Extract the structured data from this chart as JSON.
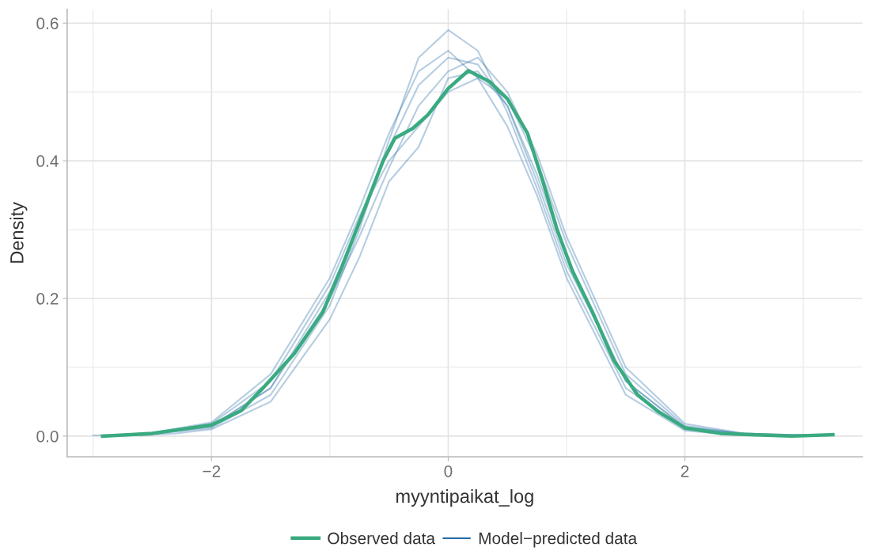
{
  "chart_data": {
    "type": "line",
    "xlabel": "myyntipaikat_log",
    "ylabel": "Density",
    "xlim": [
      -3.22,
      3.5
    ],
    "ylim": [
      -0.03,
      0.62
    ],
    "xticks": [
      {
        "value": -2,
        "label": "−2"
      },
      0,
      2
    ],
    "yticks": [
      {
        "value": 0,
        "label": "0.0"
      },
      0.2,
      0.4,
      0.6
    ],
    "grid": true,
    "legend": "bottom",
    "line_style": "solid",
    "marker": "none",
    "x": [
      -2.9,
      -2.5,
      -2,
      -1.5,
      -1,
      -0.75,
      -0.5,
      -0.25,
      0,
      0.25,
      0.5,
      0.75,
      1,
      1.5,
      2,
      2.5,
      2.9
    ],
    "series": [
      {
        "name": "Model−predicted data",
        "color": "#2c6fa8",
        "values": [
          0,
          0.004,
          0.015,
          0.07,
          0.21,
          0.31,
          0.42,
          0.51,
          0.55,
          0.54,
          0.48,
          0.38,
          0.26,
          0.08,
          0.012,
          0.003,
          0
        ]
      },
      {
        "color": "#2c6fa8",
        "x": [
          -2.7,
          -2.5,
          -2,
          -1.5,
          -1,
          -0.75,
          -0.5,
          -0.25,
          0,
          0.25,
          0.5,
          0.75,
          1,
          1.5,
          2,
          2.5,
          2.8
        ],
        "values": [
          0.001,
          0.003,
          0.012,
          0.06,
          0.19,
          0.3,
          0.43,
          0.55,
          0.59,
          0.56,
          0.47,
          0.36,
          0.24,
          0.07,
          0.01,
          0.002,
          0.001
        ]
      },
      {
        "color": "#2c6fa8",
        "x": [
          -3.0,
          -2.5,
          -2,
          -1.5,
          -1,
          -0.75,
          -0.5,
          -0.25,
          0,
          0.25,
          0.5,
          0.75,
          1,
          1.5,
          2,
          2.5,
          3.0
        ],
        "values": [
          0.001,
          0.004,
          0.018,
          0.08,
          0.22,
          0.32,
          0.4,
          0.45,
          0.5,
          0.52,
          0.49,
          0.4,
          0.28,
          0.09,
          0.015,
          0.003,
          0.001
        ]
      },
      {
        "color": "#2c6fa8",
        "x": [
          -2.6,
          -2.3,
          -2,
          -1.5,
          -1,
          -0.75,
          -0.5,
          -0.25,
          0,
          0.25,
          0.5,
          0.75,
          1,
          1.5,
          2,
          2.5,
          3.1
        ],
        "values": [
          0.001,
          0.004,
          0.01,
          0.05,
          0.17,
          0.26,
          0.37,
          0.42,
          0.52,
          0.53,
          0.48,
          0.37,
          0.25,
          0.08,
          0.013,
          0.004,
          0.001
        ]
      },
      {
        "color": "#2c6fa8",
        "x": [
          -2.8,
          -2.5,
          -2,
          -1.5,
          -1,
          -0.75,
          -0.5,
          -0.25,
          0,
          0.25,
          0.5,
          0.75,
          1,
          1.5,
          2,
          2.4,
          2.7
        ],
        "values": [
          0.001,
          0.005,
          0.02,
          0.09,
          0.23,
          0.33,
          0.44,
          0.53,
          0.56,
          0.52,
          0.45,
          0.35,
          0.23,
          0.06,
          0.008,
          0.002,
          0.001
        ]
      },
      {
        "color": "#2c6fa8",
        "x": [
          -2.75,
          -2.5,
          -2,
          -1.5,
          -1,
          -0.75,
          -0.5,
          -0.25,
          0,
          0.25,
          0.5,
          0.75,
          1,
          1.5,
          2,
          2.5,
          3.05
        ],
        "values": [
          0.001,
          0.003,
          0.014,
          0.07,
          0.2,
          0.29,
          0.39,
          0.48,
          0.53,
          0.55,
          0.5,
          0.41,
          0.29,
          0.1,
          0.018,
          0.004,
          0.001
        ]
      },
      {
        "name": "Observed data",
        "color": "#3aaa80",
        "x": [
          -2.92,
          -2.5,
          -2,
          -1.75,
          -1.57,
          -1.3,
          -1.06,
          -0.9,
          -0.73,
          -0.55,
          -0.45,
          -0.3,
          -0.17,
          0,
          0.17,
          0.35,
          0.5,
          0.67,
          0.8,
          0.92,
          1.05,
          1.22,
          1.4,
          1.6,
          1.78,
          2.0,
          2.3,
          2.6,
          2.9,
          3.25
        ],
        "values": [
          0,
          0.004,
          0.016,
          0.037,
          0.069,
          0.12,
          0.18,
          0.245,
          0.32,
          0.4,
          0.433,
          0.447,
          0.467,
          0.505,
          0.531,
          0.515,
          0.49,
          0.44,
          0.37,
          0.3,
          0.24,
          0.18,
          0.11,
          0.06,
          0.035,
          0.012,
          0.004,
          0.002,
          0,
          0.002
        ]
      }
    ]
  }
}
